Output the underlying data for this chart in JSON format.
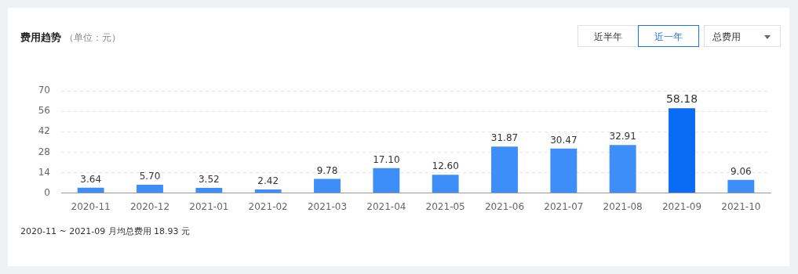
{
  "chart_data": {
    "type": "bar",
    "title": "费用趋势",
    "subtitle": "（单位：元）",
    "categories": [
      "2020-11",
      "2020-12",
      "2021-01",
      "2021-02",
      "2021-03",
      "2021-04",
      "2021-05",
      "2021-06",
      "2021-07",
      "2021-08",
      "2021-09",
      "2021-10"
    ],
    "values": [
      3.64,
      5.7,
      3.52,
      2.42,
      9.78,
      17.1,
      12.6,
      31.87,
      30.47,
      32.91,
      58.18,
      9.06
    ],
    "value_labels": [
      "3.64",
      "5.70",
      "3.52",
      "2.42",
      "9.78",
      "17.10",
      "12.60",
      "31.87",
      "30.47",
      "32.91",
      "58.18",
      "9.06"
    ],
    "colors": [
      "#3d8ef8",
      "#3d8ef8",
      "#3d8ef8",
      "#3d8ef8",
      "#3d8ef8",
      "#3d8ef8",
      "#3d8ef8",
      "#3d8ef8",
      "#3d8ef8",
      "#3d8ef8",
      "#0a6cf5",
      "#3d8ef8"
    ],
    "ylim": [
      0,
      70
    ],
    "yticks": [
      0,
      14,
      28,
      42,
      56,
      70
    ],
    "grid": "y",
    "legend": false,
    "annotations": [
      "近半年",
      "近一年",
      "总费用",
      "2020-11 ~ 2021-09 月均总费用 18.93 元"
    ]
  }
}
